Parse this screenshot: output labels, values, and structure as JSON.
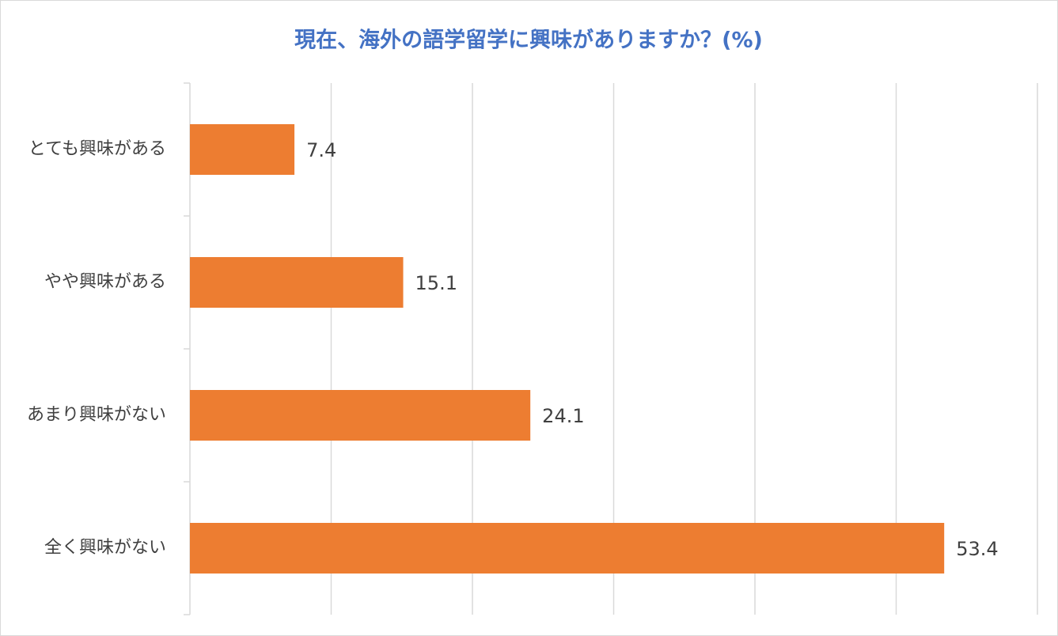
{
  "chart_data": {
    "type": "bar",
    "orientation": "horizontal",
    "title": "現在、海外の語学留学に興味がありますか？(%)",
    "categories": [
      "とても興味がある",
      "やや興味がある",
      "あまり興味がない",
      "全く興味がない"
    ],
    "values": [
      7.4,
      15.1,
      24.1,
      53.4
    ],
    "color": "#ed7d31",
    "xlim": [
      0,
      60
    ],
    "xticks": [
      0,
      10,
      20,
      30,
      40,
      50,
      60
    ],
    "grid": true
  }
}
